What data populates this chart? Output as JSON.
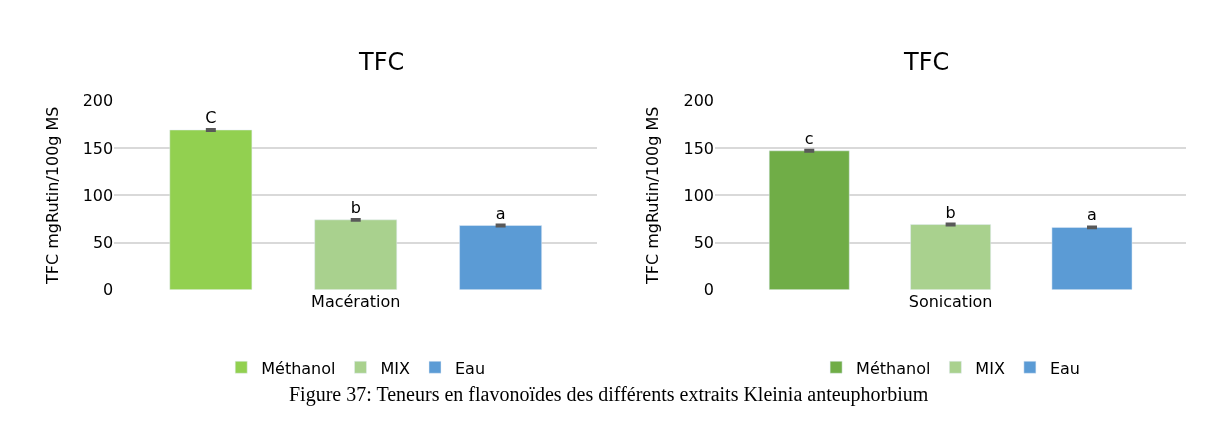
{
  "chart_data": [
    {
      "type": "bar",
      "title": "TFC",
      "ylabel": "TFC mgRutin/100g MS",
      "categories": [
        "Macération"
      ],
      "ylim": [
        0,
        200
      ],
      "yticks": [
        0,
        50,
        100,
        150,
        200
      ],
      "grid": "y",
      "legend": "bottom",
      "annotations": [
        "Figure 37: Teneurs en flavonoïdes des différents extraits Kleinia anteuphorbium"
      ],
      "series": [
        {
          "name": "Méthanol",
          "color": "#92d050",
          "values": [
            169
          ],
          "errors": [
            1
          ],
          "value_labels": [
            "C"
          ]
        },
        {
          "name": "MIX",
          "color": "#a9d18e",
          "values": [
            74
          ],
          "errors": [
            1
          ],
          "value_labels": [
            "b"
          ]
        },
        {
          "name": "Eau",
          "color": "#5b9bd5",
          "values": [
            68
          ],
          "errors": [
            1
          ],
          "value_labels": [
            "a"
          ]
        }
      ]
    },
    {
      "type": "bar",
      "title": "TFC",
      "ylabel": "TFC mgRutin/100g MS",
      "categories": [
        "Sonication"
      ],
      "ylim": [
        0,
        200
      ],
      "yticks": [
        0,
        50,
        100,
        150,
        200
      ],
      "grid": "y",
      "legend": "bottom",
      "series": [
        {
          "name": "Méthanol",
          "color": "#70ad47",
          "values": [
            147
          ],
          "errors": [
            1
          ],
          "value_labels": [
            "c"
          ]
        },
        {
          "name": "MIX",
          "color": "#a9d18e",
          "values": [
            69
          ],
          "errors": [
            1
          ],
          "value_labels": [
            "b"
          ]
        },
        {
          "name": "Eau",
          "color": "#5b9bd5",
          "values": [
            66
          ],
          "errors": [
            1
          ],
          "value_labels": [
            "a"
          ]
        }
      ]
    }
  ]
}
